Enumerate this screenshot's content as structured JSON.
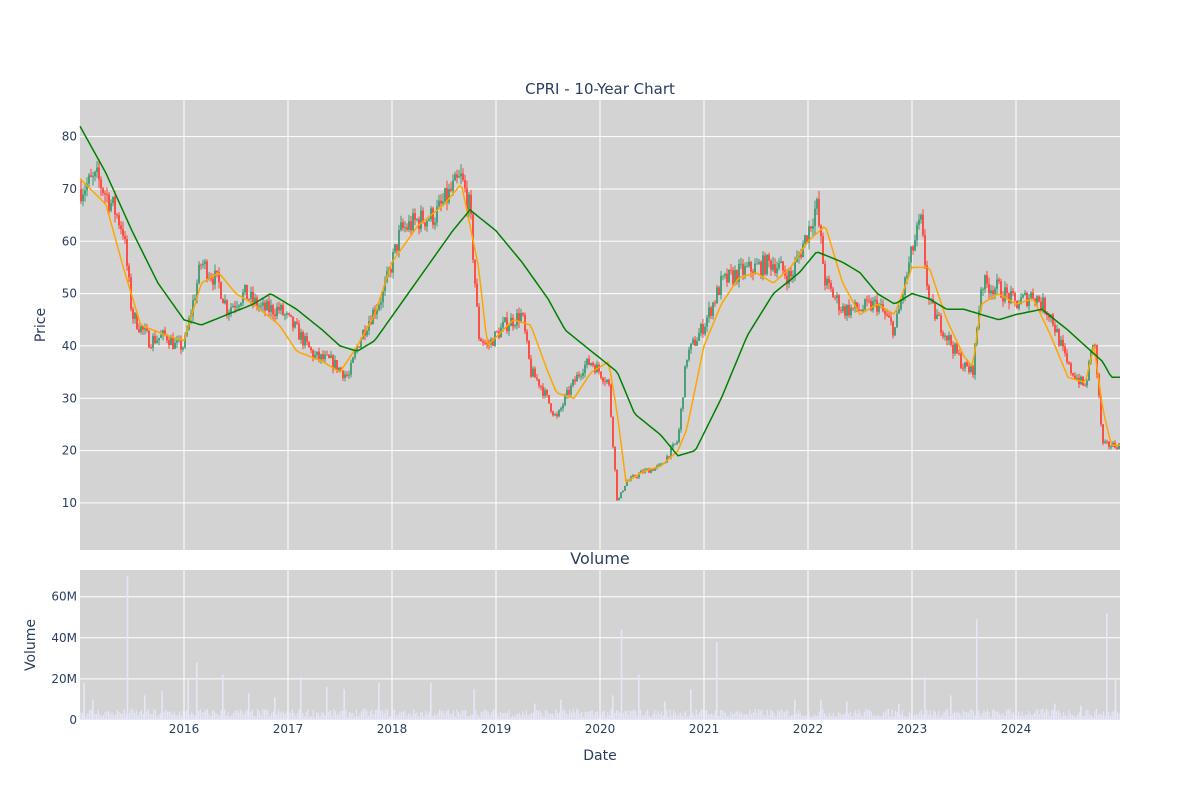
{
  "chart_data": [
    {
      "type": "candlestick",
      "title": "CPRI - 10-Year Chart",
      "xlabel": "",
      "ylabel": "Price",
      "x_range": [
        "2015-01",
        "2024-12"
      ],
      "x_ticks": [
        "2016",
        "2017",
        "2018",
        "2019",
        "2020",
        "2021",
        "2022",
        "2023",
        "2024"
      ],
      "y_ticks": [
        10,
        20,
        30,
        40,
        50,
        60,
        70,
        80
      ],
      "ylim": [
        1,
        87
      ],
      "grid": true,
      "colors": {
        "up": "#3d9970",
        "down": "#ff4136",
        "short_ma": "#ffa500",
        "long_ma": "#008000",
        "plot_bg": "#d3d3d3"
      },
      "close_series": {
        "x": [
          "2015-01",
          "2015-03",
          "2015-05",
          "2015-06",
          "2015-07",
          "2015-09",
          "2015-11",
          "2015-12",
          "2016-01",
          "2016-03",
          "2016-05",
          "2016-06",
          "2016-08",
          "2016-10",
          "2016-12",
          "2017-02",
          "2017-04",
          "2017-06",
          "2017-08",
          "2017-09",
          "2017-10",
          "2017-12",
          "2018-02",
          "2018-04",
          "2018-06",
          "2018-08",
          "2018-09",
          "2018-10",
          "2018-11",
          "2018-12",
          "2019-02",
          "2019-04",
          "2019-05",
          "2019-06",
          "2019-08",
          "2019-09",
          "2019-11",
          "2019-12",
          "2020-02",
          "2020-03",
          "2020-04",
          "2020-06",
          "2020-08",
          "2020-10",
          "2020-11",
          "2021-01",
          "2021-03",
          "2021-05",
          "2021-07",
          "2021-09",
          "2021-11",
          "2022-01",
          "2022-02",
          "2022-03",
          "2022-05",
          "2022-07",
          "2022-09",
          "2022-11",
          "2023-01",
          "2023-02",
          "2023-03",
          "2023-05",
          "2023-07",
          "2023-08",
          "2023-09",
          "2023-11",
          "2024-01",
          "2024-03",
          "2024-05",
          "2024-07",
          "2024-09",
          "2024-10",
          "2024-11",
          "2024-12"
        ],
        "values": [
          70,
          72,
          66,
          62,
          46,
          41,
          42,
          40,
          40,
          56,
          52,
          47,
          50,
          47,
          47,
          43,
          38,
          37,
          34,
          40,
          44,
          50,
          62,
          64,
          65,
          70,
          72,
          66,
          42,
          40,
          44,
          46,
          35,
          33,
          26,
          30,
          36,
          37,
          33,
          10,
          14,
          16,
          17,
          22,
          38,
          44,
          52,
          54,
          55,
          56,
          53,
          62,
          67,
          52,
          47,
          47,
          48,
          43,
          58,
          64,
          48,
          42,
          36,
          35,
          52,
          51,
          48,
          50,
          46,
          36,
          32,
          42,
          21,
          21
        ]
      },
      "ma_short": {
        "x": [
          "2015-01",
          "2015-04",
          "2015-06",
          "2015-08",
          "2015-11",
          "2016-01",
          "2016-03",
          "2016-05",
          "2016-07",
          "2016-09",
          "2016-12",
          "2017-02",
          "2017-05",
          "2017-07",
          "2017-09",
          "2017-11",
          "2018-01",
          "2018-04",
          "2018-07",
          "2018-09",
          "2018-11",
          "2018-12",
          "2019-03",
          "2019-05",
          "2019-07",
          "2019-08",
          "2019-10",
          "2019-12",
          "2020-02",
          "2020-03",
          "2020-04",
          "2020-06",
          "2020-08",
          "2020-10",
          "2020-11",
          "2021-01",
          "2021-03",
          "2021-05",
          "2021-07",
          "2021-09",
          "2021-11",
          "2022-01",
          "2022-03",
          "2022-05",
          "2022-07",
          "2022-09",
          "2022-11",
          "2023-01",
          "2023-03",
          "2023-05",
          "2023-07",
          "2023-08",
          "2023-09",
          "2023-11",
          "2024-01",
          "2024-03",
          "2024-05",
          "2024-07",
          "2024-09",
          "2024-10",
          "2024-11",
          "2024-12"
        ],
        "values": [
          72,
          67,
          55,
          44,
          42,
          41,
          52,
          54,
          50,
          48,
          44,
          39,
          37,
          35,
          40,
          46,
          56,
          63,
          67,
          71,
          55,
          40,
          45,
          44,
          35,
          31,
          30,
          35,
          37,
          27,
          14,
          16,
          17,
          20,
          24,
          40,
          48,
          53,
          54,
          52,
          55,
          60,
          63,
          52,
          46,
          48,
          46,
          55,
          55,
          45,
          38,
          36,
          48,
          50,
          48,
          49,
          42,
          34,
          33,
          40,
          28,
          21
        ]
      },
      "ma_long": {
        "x": [
          "2015-01",
          "2015-04",
          "2015-07",
          "2015-10",
          "2016-01",
          "2016-03",
          "2016-06",
          "2016-09",
          "2016-11",
          "2017-02",
          "2017-05",
          "2017-07",
          "2017-09",
          "2017-11",
          "2018-02",
          "2018-05",
          "2018-08",
          "2018-10",
          "2019-01",
          "2019-04",
          "2019-07",
          "2019-09",
          "2019-12",
          "2020-03",
          "2020-05",
          "2020-08",
          "2020-10",
          "2020-12",
          "2021-03",
          "2021-06",
          "2021-09",
          "2021-12",
          "2022-02",
          "2022-05",
          "2022-07",
          "2022-09",
          "2022-11",
          "2023-01",
          "2023-03",
          "2023-05",
          "2023-07",
          "2023-09",
          "2023-11",
          "2024-01",
          "2024-04",
          "2024-07",
          "2024-09",
          "2024-11",
          "2024-12"
        ],
        "values": [
          82,
          73,
          62,
          52,
          45,
          44,
          46,
          48,
          50,
          47,
          43,
          40,
          39,
          41,
          48,
          55,
          62,
          66,
          62,
          56,
          49,
          43,
          39,
          35,
          27,
          23,
          19,
          20,
          30,
          42,
          50,
          54,
          58,
          56,
          54,
          50,
          48,
          50,
          49,
          47,
          47,
          46,
          45,
          46,
          47,
          43,
          40,
          37,
          34
        ]
      }
    },
    {
      "type": "bar",
      "title": "Volume",
      "xlabel": "Date",
      "ylabel": "Volume",
      "x_ticks": [
        "2016",
        "2017",
        "2018",
        "2019",
        "2020",
        "2021",
        "2022",
        "2023",
        "2024"
      ],
      "y_ticks": [
        "0",
        "20M",
        "40M",
        "60M"
      ],
      "ylim": [
        0,
        73000000
      ],
      "bar_color": "#e6e6fa",
      "spikes": {
        "x": [
          "2015-01",
          "2015-02",
          "2015-06",
          "2015-08",
          "2015-10",
          "2016-01",
          "2016-02",
          "2016-05",
          "2016-08",
          "2016-11",
          "2017-02",
          "2017-05",
          "2017-07",
          "2017-11",
          "2018-05",
          "2018-10",
          "2019-05",
          "2019-08",
          "2020-02",
          "2020-03",
          "2020-05",
          "2020-08",
          "2020-11",
          "2021-02",
          "2021-11",
          "2022-02",
          "2022-05",
          "2022-11",
          "2023-02",
          "2023-05",
          "2023-08",
          "2024-05",
          "2024-08",
          "2024-11",
          "2024-12"
        ],
        "values": [
          18000000,
          10000000,
          70000000,
          12000000,
          14000000,
          20000000,
          28000000,
          22000000,
          13000000,
          11000000,
          21000000,
          16000000,
          15000000,
          18000000,
          18000000,
          15000000,
          8000000,
          10000000,
          12000000,
          44000000,
          22000000,
          9000000,
          15000000,
          38000000,
          10000000,
          10000000,
          9000000,
          8000000,
          21000000,
          12000000,
          49000000,
          8000000,
          7000000,
          52000000,
          20000000
        ]
      }
    }
  ]
}
